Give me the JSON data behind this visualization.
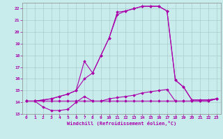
{
  "xlabel": "Windchill (Refroidissement éolien,°C)",
  "bg_color": "#c8ecec",
  "grid_color": "#aacccc",
  "line_color": "#aa00aa",
  "spine_color": "#888888",
  "xlim": [
    -0.5,
    23.5
  ],
  "ylim": [
    13,
    22.5
  ],
  "yticks": [
    13,
    14,
    15,
    16,
    17,
    18,
    19,
    20,
    21,
    22
  ],
  "xticks": [
    0,
    1,
    2,
    3,
    4,
    5,
    6,
    7,
    8,
    9,
    10,
    11,
    12,
    13,
    14,
    15,
    16,
    17,
    18,
    19,
    20,
    21,
    22,
    23
  ],
  "lines": [
    {
      "x": [
        0,
        1,
        2,
        3,
        4,
        5,
        6,
        7,
        8,
        9,
        10,
        11,
        12,
        13,
        14,
        15,
        16,
        17,
        18,
        19,
        20,
        21,
        22,
        23
      ],
      "y": [
        14.1,
        14.1,
        14.1,
        14.1,
        14.1,
        14.1,
        14.1,
        14.1,
        14.1,
        14.1,
        14.1,
        14.1,
        14.1,
        14.1,
        14.1,
        14.1,
        14.1,
        14.1,
        14.1,
        14.1,
        14.1,
        14.1,
        14.1,
        14.3
      ]
    },
    {
      "x": [
        0,
        1,
        2,
        3,
        4,
        5,
        6,
        7,
        8,
        9,
        10,
        11,
        12,
        13,
        14,
        15,
        16,
        17,
        18,
        19,
        20,
        21,
        22,
        23
      ],
      "y": [
        14.1,
        14.1,
        13.6,
        13.3,
        13.3,
        13.4,
        14.0,
        14.5,
        14.1,
        14.1,
        14.3,
        14.4,
        14.5,
        14.6,
        14.8,
        14.9,
        15.0,
        15.1,
        14.1,
        14.1,
        14.1,
        14.1,
        14.1,
        14.3
      ]
    },
    {
      "x": [
        0,
        1,
        2,
        3,
        4,
        5,
        6,
        7,
        8,
        9,
        10,
        11,
        12,
        13,
        14,
        15,
        16,
        17,
        18,
        19,
        20,
        21,
        22,
        23
      ],
      "y": [
        14.1,
        14.1,
        14.2,
        14.3,
        14.5,
        14.7,
        15.0,
        16.0,
        16.5,
        18.0,
        19.5,
        21.5,
        21.8,
        22.0,
        22.2,
        22.2,
        22.2,
        21.8,
        15.9,
        15.3,
        14.2,
        14.2,
        14.2,
        14.3
      ]
    },
    {
      "x": [
        0,
        1,
        2,
        3,
        4,
        5,
        6,
        7,
        8,
        9,
        10,
        11,
        12,
        13,
        14,
        15,
        16,
        17,
        18,
        19,
        20,
        21,
        22,
        23
      ],
      "y": [
        14.1,
        14.1,
        14.2,
        14.3,
        14.5,
        14.7,
        15.0,
        17.5,
        16.5,
        18.0,
        19.5,
        21.7,
        21.8,
        22.0,
        22.2,
        22.2,
        22.2,
        21.8,
        15.9,
        15.3,
        14.2,
        14.2,
        14.2,
        14.3
      ]
    }
  ]
}
